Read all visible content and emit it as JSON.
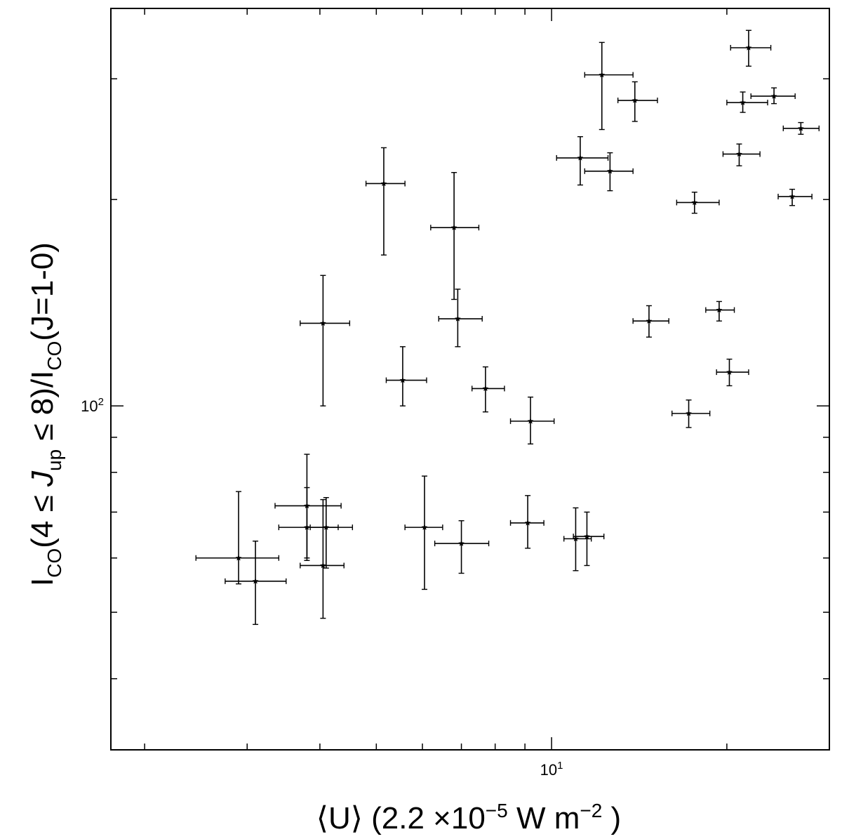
{
  "chart_data": {
    "type": "scatter",
    "title": "",
    "xlabel": "⟨U⟩ (2.2 ×10⁻⁵ W m⁻²)",
    "ylabel": "I_CO(4 ≤ J_up ≤ 8)/I_CO(J=1-0)",
    "xscale": "log",
    "yscale": "log",
    "xlim": [
      1.75,
      30.0
    ],
    "ylim": [
      31.5,
      380
    ],
    "grid": false,
    "legend": "none",
    "marker": "star with x and y error bars",
    "x_tick_labels": [
      {
        "value": 10,
        "base": "10",
        "exp": "1"
      }
    ],
    "y_tick_labels": [
      {
        "value": 100,
        "base": "10",
        "exp": "2"
      }
    ],
    "x_major_ticks": [
      10
    ],
    "x_minor_ticks": [
      2,
      3,
      4,
      5,
      6,
      7,
      8,
      9,
      20,
      30
    ],
    "y_major_ticks": [
      100
    ],
    "y_minor_ticks": [
      40,
      50,
      60,
      70,
      80,
      90,
      200,
      300
    ],
    "points": [
      {
        "x": 2.9,
        "y": 60.0,
        "xerr": [
          2.45,
          3.4
        ],
        "yerr": [
          55.0,
          75.0
        ]
      },
      {
        "x": 3.1,
        "y": 55.5,
        "xerr": [
          2.75,
          3.5
        ],
        "yerr": [
          48.0,
          63.5
        ]
      },
      {
        "x": 3.8,
        "y": 71.5,
        "xerr": [
          3.35,
          4.35
        ],
        "yerr": [
          60.0,
          85.0
        ]
      },
      {
        "x": 3.8,
        "y": 66.5,
        "xerr": [
          3.4,
          4.3
        ],
        "yerr": [
          59.5,
          76.0
        ]
      },
      {
        "x": 4.1,
        "y": 66.5,
        "xerr": [
          3.85,
          4.55
        ],
        "yerr": [
          58.0,
          73.5
        ]
      },
      {
        "x": 4.05,
        "y": 58.5,
        "xerr": [
          3.7,
          4.4
        ],
        "yerr": [
          49.0,
          73.0
        ]
      },
      {
        "x": 4.05,
        "y": 132.0,
        "xerr": [
          3.7,
          4.5
        ],
        "yerr": [
          100.0,
          155.0
        ]
      },
      {
        "x": 5.15,
        "y": 211.0,
        "xerr": [
          4.8,
          5.6
        ],
        "yerr": [
          166.0,
          238.0
        ]
      },
      {
        "x": 5.55,
        "y": 109.0,
        "xerr": [
          5.2,
          6.1
        ],
        "yerr": [
          100.0,
          122.0
        ]
      },
      {
        "x": 6.05,
        "y": 66.5,
        "xerr": [
          5.6,
          6.5
        ],
        "yerr": [
          54.0,
          79.0
        ]
      },
      {
        "x": 6.8,
        "y": 182.0,
        "xerr": [
          6.2,
          7.5
        ],
        "yerr": [
          143.0,
          219.0
        ]
      },
      {
        "x": 6.9,
        "y": 134.0,
        "xerr": [
          6.4,
          7.6
        ],
        "yerr": [
          122.0,
          148.0
        ]
      },
      {
        "x": 7.0,
        "y": 63.0,
        "xerr": [
          6.3,
          7.8
        ],
        "yerr": [
          57.0,
          68.0
        ]
      },
      {
        "x": 7.7,
        "y": 106.0,
        "xerr": [
          7.3,
          8.3
        ],
        "yerr": [
          98.0,
          114.0
        ]
      },
      {
        "x": 9.1,
        "y": 67.5,
        "xerr": [
          8.5,
          9.7
        ],
        "yerr": [
          62.0,
          74.0
        ]
      },
      {
        "x": 9.2,
        "y": 95.0,
        "xerr": [
          8.5,
          10.1
        ],
        "yerr": [
          88.0,
          103.0
        ]
      },
      {
        "x": 11.0,
        "y": 64.0,
        "xerr": [
          10.5,
          11.7
        ],
        "yerr": [
          57.5,
          71.0
        ]
      },
      {
        "x": 11.5,
        "y": 64.5,
        "xerr": [
          10.9,
          12.3
        ],
        "yerr": [
          58.5,
          70.0
        ]
      },
      {
        "x": 11.2,
        "y": 230.0,
        "xerr": [
          10.2,
          12.5
        ],
        "yerr": [
          210.0,
          247.0
        ]
      },
      {
        "x": 12.2,
        "y": 304.0,
        "xerr": [
          11.4,
          13.8
        ],
        "yerr": [
          253.0,
          339.0
        ]
      },
      {
        "x": 12.6,
        "y": 220.0,
        "xerr": [
          11.4,
          13.8
        ],
        "yerr": [
          206.0,
          234.0
        ]
      },
      {
        "x": 13.9,
        "y": 279.0,
        "xerr": [
          13.0,
          15.2
        ],
        "yerr": [
          260.0,
          297.0
        ]
      },
      {
        "x": 14.7,
        "y": 133.0,
        "xerr": [
          13.8,
          15.9
        ],
        "yerr": [
          126.0,
          140.0
        ]
      },
      {
        "x": 17.2,
        "y": 97.5,
        "xerr": [
          16.1,
          18.7
        ],
        "yerr": [
          93.0,
          102.0
        ]
      },
      {
        "x": 17.6,
        "y": 198.0,
        "xerr": [
          16.4,
          19.4
        ],
        "yerr": [
          191.0,
          205.0
        ]
      },
      {
        "x": 19.4,
        "y": 138.0,
        "xerr": [
          18.4,
          20.6
        ],
        "yerr": [
          133.0,
          142.0
        ]
      },
      {
        "x": 20.2,
        "y": 112.0,
        "xerr": [
          19.2,
          21.8
        ],
        "yerr": [
          107.0,
          117.0
        ]
      },
      {
        "x": 21.0,
        "y": 233.0,
        "xerr": [
          19.7,
          22.8
        ],
        "yerr": [
          224.0,
          241.0
        ]
      },
      {
        "x": 21.3,
        "y": 277.0,
        "xerr": [
          20.0,
          23.5
        ],
        "yerr": [
          268.0,
          287.0
        ]
      },
      {
        "x": 21.8,
        "y": 333.0,
        "xerr": [
          20.3,
          23.8
        ],
        "yerr": [
          313.0,
          353.0
        ]
      },
      {
        "x": 24.1,
        "y": 283.0,
        "xerr": [
          22.0,
          26.2
        ],
        "yerr": [
          276.0,
          291.0
        ]
      },
      {
        "x": 25.9,
        "y": 202.0,
        "xerr": [
          24.5,
          28.0
        ],
        "yerr": [
          196.0,
          207.0
        ]
      },
      {
        "x": 26.8,
        "y": 254.0,
        "xerr": [
          25.0,
          28.8
        ],
        "yerr": [
          249.0,
          259.0
        ]
      }
    ]
  }
}
